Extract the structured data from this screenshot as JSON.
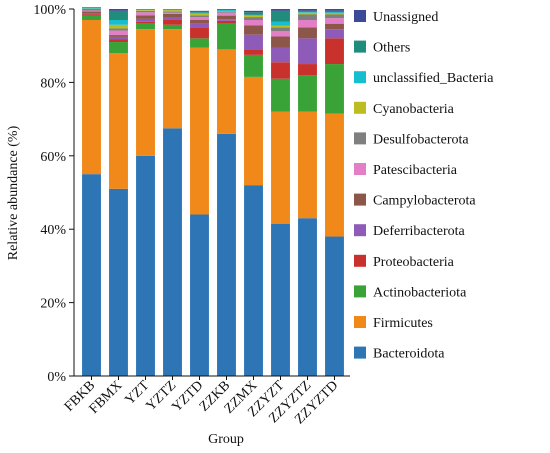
{
  "chart_data": {
    "type": "bar",
    "stacked": true,
    "xlabel": "Group",
    "ylabel": "Relative abundance (%)",
    "ylim": [
      0,
      100
    ],
    "yticks": [
      "0%",
      "20%",
      "40%",
      "60%",
      "80%",
      "100%"
    ],
    "categories": [
      "FBKB",
      "FBMX",
      "YZT",
      "YZTZ",
      "YZTD",
      "ZZKB",
      "ZZMX",
      "ZZYZT",
      "ZZYZTZ",
      "ZZYZTD"
    ],
    "legend_position": "right",
    "series": [
      {
        "name": "Bacteroidota",
        "color": "#2e75b6",
        "values": [
          55,
          51,
          60,
          67.5,
          44,
          66,
          52,
          41.5,
          43,
          38
        ]
      },
      {
        "name": "Firmicutes",
        "color": "#f0891a",
        "values": [
          42,
          37,
          34.5,
          27,
          45.5,
          23,
          29.5,
          30.5,
          29,
          33.5
        ]
      },
      {
        "name": "Actinobacteriota",
        "color": "#3aa338",
        "values": [
          1.2,
          3,
          1.5,
          1.2,
          2.5,
          7,
          6,
          9,
          10,
          13.5
        ]
      },
      {
        "name": "Proteobacteria",
        "color": "#c9312c",
        "values": [
          0.4,
          0.8,
          0.5,
          1.5,
          3,
          0.8,
          1.5,
          4.5,
          3,
          7
        ]
      },
      {
        "name": "Deferribacterota",
        "color": "#8e5cb8",
        "values": [
          0.3,
          0.6,
          0.8,
          0.5,
          1,
          0.4,
          4,
          4,
          7,
          2.5
        ]
      },
      {
        "name": "Campylobacterota",
        "color": "#8c564b",
        "values": [
          0.4,
          0.5,
          1,
          1,
          1,
          1,
          2.5,
          3,
          3,
          1.5
        ]
      },
      {
        "name": "Patescibacteria",
        "color": "#e27fc7",
        "values": [
          0.3,
          1.2,
          0.8,
          0.3,
          0.8,
          0.8,
          1.5,
          1.5,
          2,
          1.5
        ]
      },
      {
        "name": "Desulfobacterota",
        "color": "#7f7f7f",
        "values": [
          0.4,
          0.6,
          0.4,
          0.3,
          0.5,
          0.3,
          0.8,
          1,
          1.5,
          1
        ]
      },
      {
        "name": "Cyanobacteria",
        "color": "#bcbd22",
        "values": [
          0.1,
          1,
          0.2,
          0.4,
          0.4,
          0.1,
          0.4,
          0.5,
          0.5,
          0.3
        ]
      },
      {
        "name": "unclassified_Bacteria",
        "color": "#17becf",
        "values": [
          0.2,
          1.3,
          0.1,
          0.1,
          0.3,
          0.3,
          0.2,
          1,
          0.2,
          0.3
        ]
      },
      {
        "name": "Others",
        "color": "#1f8c7c",
        "values": [
          0.1,
          2.5,
          0.1,
          0.1,
          0.3,
          0.1,
          0.7,
          3,
          0.3,
          0.4
        ]
      },
      {
        "name": "Unassigned",
        "color": "#3b4a96",
        "values": [
          0.1,
          0.5,
          0.1,
          0.1,
          0.2,
          0.2,
          0.4,
          0.5,
          0.5,
          0.5
        ]
      }
    ]
  }
}
